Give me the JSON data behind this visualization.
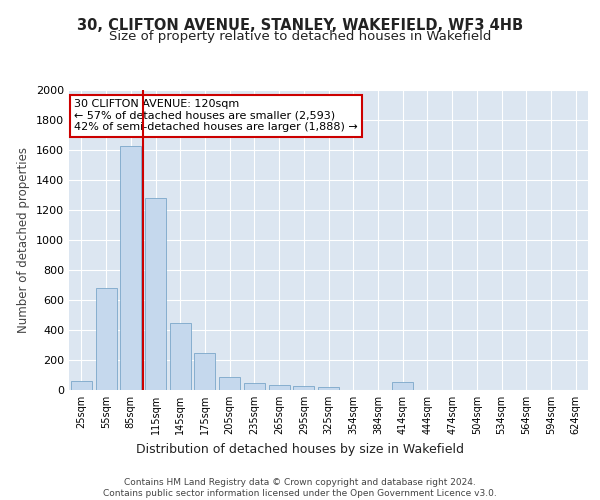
{
  "title1": "30, CLIFTON AVENUE, STANLEY, WAKEFIELD, WF3 4HB",
  "title2": "Size of property relative to detached houses in Wakefield",
  "xlabel": "Distribution of detached houses by size in Wakefield",
  "ylabel": "Number of detached properties",
  "categories": [
    "25sqm",
    "55sqm",
    "85sqm",
    "115sqm",
    "145sqm",
    "175sqm",
    "205sqm",
    "235sqm",
    "265sqm",
    "295sqm",
    "325sqm",
    "354sqm",
    "384sqm",
    "414sqm",
    "444sqm",
    "474sqm",
    "504sqm",
    "534sqm",
    "564sqm",
    "594sqm",
    "624sqm"
  ],
  "values": [
    60,
    680,
    1630,
    1280,
    450,
    250,
    90,
    50,
    35,
    25,
    20,
    0,
    0,
    55,
    0,
    0,
    0,
    0,
    0,
    0,
    0
  ],
  "bar_color": "#c5d8ed",
  "bar_edge_color": "#7ba7c9",
  "vline_x_pos": 2.5,
  "vline_color": "#cc0000",
  "annotation_text": "30 CLIFTON AVENUE: 120sqm\n← 57% of detached houses are smaller (2,593)\n42% of semi-detached houses are larger (1,888) →",
  "annotation_box_facecolor": "#ffffff",
  "annotation_box_edgecolor": "#cc0000",
  "ylim": [
    0,
    2000
  ],
  "yticks": [
    0,
    200,
    400,
    600,
    800,
    1000,
    1200,
    1400,
    1600,
    1800,
    2000
  ],
  "plot_bg": "#dce6f1",
  "footer_text": "Contains HM Land Registry data © Crown copyright and database right 2024.\nContains public sector information licensed under the Open Government Licence v3.0.",
  "title1_fontsize": 10.5,
  "title2_fontsize": 9.5,
  "ylabel_fontsize": 8.5,
  "xlabel_fontsize": 9,
  "tick_fontsize": 8,
  "annot_fontsize": 8,
  "footer_fontsize": 6.5
}
